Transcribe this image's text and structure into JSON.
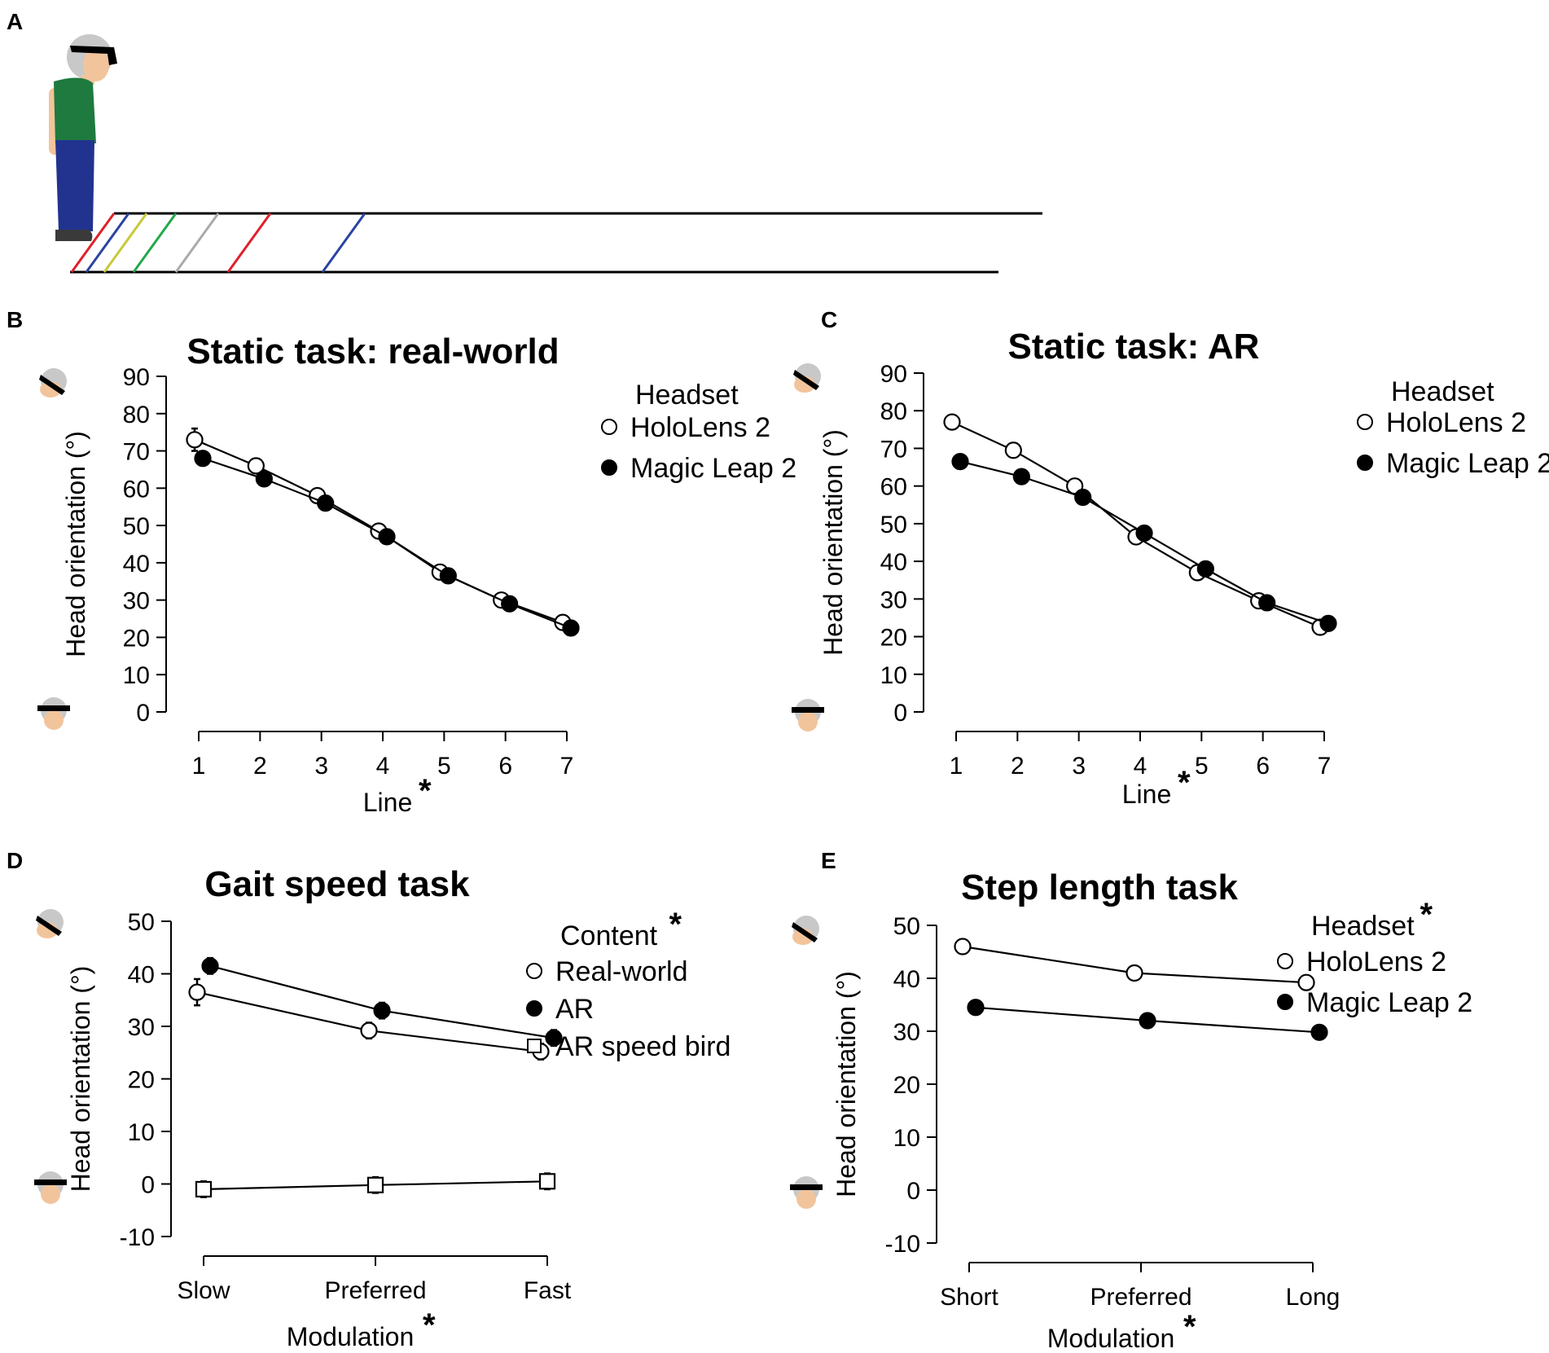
{
  "panel_letters": {
    "a": "A",
    "b": "B",
    "c": "C",
    "d": "D",
    "e": "E"
  },
  "colors": {
    "shirt": "#1e7a3e",
    "trousers": "#22338f",
    "skin": "#f2c49b",
    "hair": "#c8c8c8",
    "shoe": "#3a3a3a",
    "lines": [
      "#e0202a",
      "#2a44a0",
      "#c8c83a",
      "#22a84a",
      "#aaaaaa",
      "#e0202a",
      "#2a44a0"
    ]
  },
  "chart_data": [
    {
      "id": "b",
      "type": "line",
      "title": "Static task: real-world",
      "xlabel": "Line",
      "xlabel_mark": "*",
      "ylabel": "Head orientation (°)",
      "ylim": [
        0,
        90
      ],
      "yticks": [
        "0",
        "10",
        "20",
        "30",
        "40",
        "50",
        "60",
        "70",
        "80",
        "90"
      ],
      "categories": [
        "1",
        "2",
        "3",
        "4",
        "5",
        "6",
        "7"
      ],
      "legend_title": "Headset",
      "legend_title_mark": "",
      "series": [
        {
          "name": "HoloLens 2",
          "marker": "open-circle",
          "values": [
            73,
            66,
            58,
            48.5,
            37.5,
            30,
            24
          ],
          "errors": [
            3,
            1.2,
            1,
            1,
            1,
            1,
            1
          ]
        },
        {
          "name": "Magic Leap 2",
          "marker": "filled-circle",
          "values": [
            68,
            62.5,
            56,
            47,
            36.5,
            29,
            22.5
          ],
          "errors": [
            1.2,
            1,
            1,
            1,
            1,
            1,
            1
          ]
        }
      ]
    },
    {
      "id": "c",
      "type": "line",
      "title": "Static task: AR",
      "xlabel": "Line",
      "xlabel_mark": "*",
      "ylabel": "Head orientation (°)",
      "ylim": [
        0,
        90
      ],
      "yticks": [
        "0",
        "10",
        "20",
        "30",
        "40",
        "50",
        "60",
        "70",
        "80",
        "90"
      ],
      "categories": [
        "1",
        "2",
        "3",
        "4",
        "5",
        "6",
        "7"
      ],
      "legend_title": "Headset",
      "legend_title_mark": "",
      "series": [
        {
          "name": "HoloLens 2",
          "marker": "open-circle",
          "values": [
            77,
            69.5,
            60,
            46.5,
            37,
            29.5,
            22.5
          ],
          "errors": [
            1.5,
            1,
            1,
            1,
            1,
            1,
            1
          ]
        },
        {
          "name": "Magic Leap 2",
          "marker": "filled-circle",
          "values": [
            66.5,
            62.5,
            57,
            47.5,
            38,
            29,
            23.5
          ],
          "errors": [
            1,
            1,
            1,
            1,
            1,
            1,
            1
          ]
        }
      ]
    },
    {
      "id": "d",
      "type": "line",
      "title": "Gait speed task",
      "xlabel": "Modulation",
      "xlabel_mark": "*",
      "ylabel": "Head orientation (°)",
      "ylim": [
        -10,
        50
      ],
      "yticks": [
        "-10",
        "0",
        "10",
        "20",
        "30",
        "40",
        "50"
      ],
      "categories": [
        "Slow",
        "Preferred",
        "Fast"
      ],
      "legend_title": "Content",
      "legend_title_mark": "*",
      "series": [
        {
          "name": "Real-world",
          "marker": "open-circle",
          "values": [
            36.5,
            29.2,
            25.2
          ],
          "errors": [
            2.5,
            1.5,
            1.5
          ]
        },
        {
          "name": "AR",
          "marker": "filled-circle",
          "values": [
            41.5,
            33,
            27.8
          ],
          "errors": [
            1.5,
            1.5,
            1.5
          ]
        },
        {
          "name": "AR speed bird",
          "marker": "open-square",
          "values": [
            -1,
            -0.2,
            0.5
          ],
          "errors": [
            1.5,
            1.5,
            1.5
          ]
        }
      ]
    },
    {
      "id": "e",
      "type": "line",
      "title": "Step length task",
      "xlabel": "Modulation",
      "xlabel_mark": "*",
      "ylabel": "Head orientation (°)",
      "ylim": [
        -10,
        50
      ],
      "yticks": [
        "-10",
        "0",
        "10",
        "20",
        "30",
        "40",
        "50"
      ],
      "categories": [
        "Short",
        "Preferred",
        "Long"
      ],
      "legend_title": "Headset",
      "legend_title_mark": "*",
      "series": [
        {
          "name": "HoloLens 2",
          "marker": "open-circle",
          "values": [
            46,
            41,
            39.2
          ],
          "errors": [
            0,
            0,
            0
          ]
        },
        {
          "name": "Magic Leap 2",
          "marker": "filled-circle",
          "values": [
            34.5,
            32,
            29.8
          ],
          "errors": [
            0,
            0,
            0
          ]
        }
      ]
    }
  ]
}
